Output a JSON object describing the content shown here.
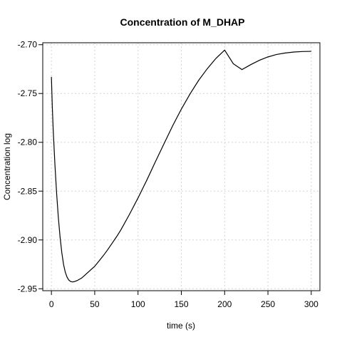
{
  "chart_data": {
    "type": "line",
    "title": "Concentration of M_DHAP",
    "xlabel": "time (s)",
    "ylabel": "Concentration log",
    "xlim": [
      -10,
      310
    ],
    "ylim": [
      -2.952,
      -2.698
    ],
    "xticks": [
      0,
      50,
      100,
      150,
      200,
      250,
      300
    ],
    "yticks": [
      -2.95,
      -2.9,
      -2.85,
      -2.8,
      -2.75,
      -2.7
    ],
    "xtick_labels": [
      "0",
      "50",
      "100",
      "150",
      "200",
      "250",
      "300"
    ],
    "ytick_labels": [
      "-2.95",
      "-2.90",
      "-2.85",
      "-2.80",
      "-2.75",
      "-2.70"
    ],
    "grid": true,
    "series": [
      {
        "x": [
          0,
          1,
          2,
          4,
          6,
          8,
          10,
          12,
          14,
          16,
          18,
          20,
          22,
          24,
          26,
          28,
          30,
          32,
          35,
          40,
          45,
          50,
          55,
          60,
          65,
          70,
          75,
          80,
          90,
          100,
          110,
          120,
          130,
          140,
          150,
          160,
          170,
          180,
          190,
          200,
          210,
          220,
          230,
          240,
          250,
          260,
          270,
          280,
          290,
          300
        ],
        "y": [
          -2.733,
          -2.763,
          -2.786,
          -2.822,
          -2.852,
          -2.877,
          -2.897,
          -2.913,
          -2.925,
          -2.933,
          -2.938,
          -2.941,
          -2.9425,
          -2.943,
          -2.9428,
          -2.9422,
          -2.9415,
          -2.9405,
          -2.939,
          -2.935,
          -2.931,
          -2.927,
          -2.9215,
          -2.916,
          -2.91,
          -2.9035,
          -2.897,
          -2.89,
          -2.874,
          -2.857,
          -2.839,
          -2.82,
          -2.8015,
          -2.783,
          -2.766,
          -2.7505,
          -2.7365,
          -2.7245,
          -2.714,
          -2.7055,
          -2.7195,
          -2.7255,
          -2.7205,
          -2.716,
          -2.7125,
          -2.71,
          -2.7085,
          -2.7075,
          -2.707,
          -2.7068
        ]
      }
    ]
  }
}
